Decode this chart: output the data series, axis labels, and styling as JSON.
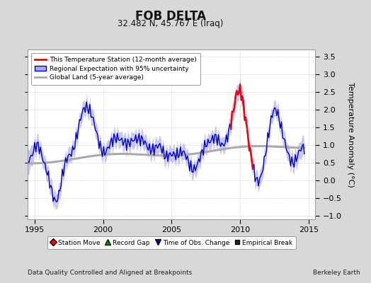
{
  "title": "FOB DELTA",
  "subtitle": "32.482 N, 45.767 E (Iraq)",
  "ylabel": "Temperature Anomaly (°C)",
  "xlabel_note": "Data Quality Controlled and Aligned at Breakpoints",
  "credit": "Berkeley Earth",
  "xlim": [
    1994.5,
    2015.5
  ],
  "ylim": [
    -1.1,
    3.7
  ],
  "yticks": [
    -1,
    -0.5,
    0,
    0.5,
    1,
    1.5,
    2,
    2.5,
    3,
    3.5
  ],
  "xticks": [
    1995,
    2000,
    2005,
    2010,
    2015
  ],
  "bg_color": "#d8d8d8",
  "plot_bg_color": "#ffffff",
  "regional_line_color": "#0000cc",
  "regional_fill_color": "#aaaaee",
  "station_line_color": "#ff0000",
  "global_line_color": "#aaaaaa",
  "legend1_items": [
    {
      "label": "This Temperature Station (12-month average)",
      "color": "#ff0000"
    },
    {
      "label": "Regional Expectation with 95% uncertainty",
      "color": "#0000cc"
    },
    {
      "label": "Global Land (5-year average)",
      "color": "#aaaaaa"
    }
  ],
  "legend2_items": [
    {
      "label": "Station Move",
      "marker": "D",
      "color": "#ff0000"
    },
    {
      "label": "Record Gap",
      "marker": "^",
      "color": "#009900"
    },
    {
      "label": "Time of Obs. Change",
      "marker": "v",
      "color": "#0000bb"
    },
    {
      "label": "Empirical Break",
      "marker": "s",
      "color": "#222222"
    }
  ]
}
